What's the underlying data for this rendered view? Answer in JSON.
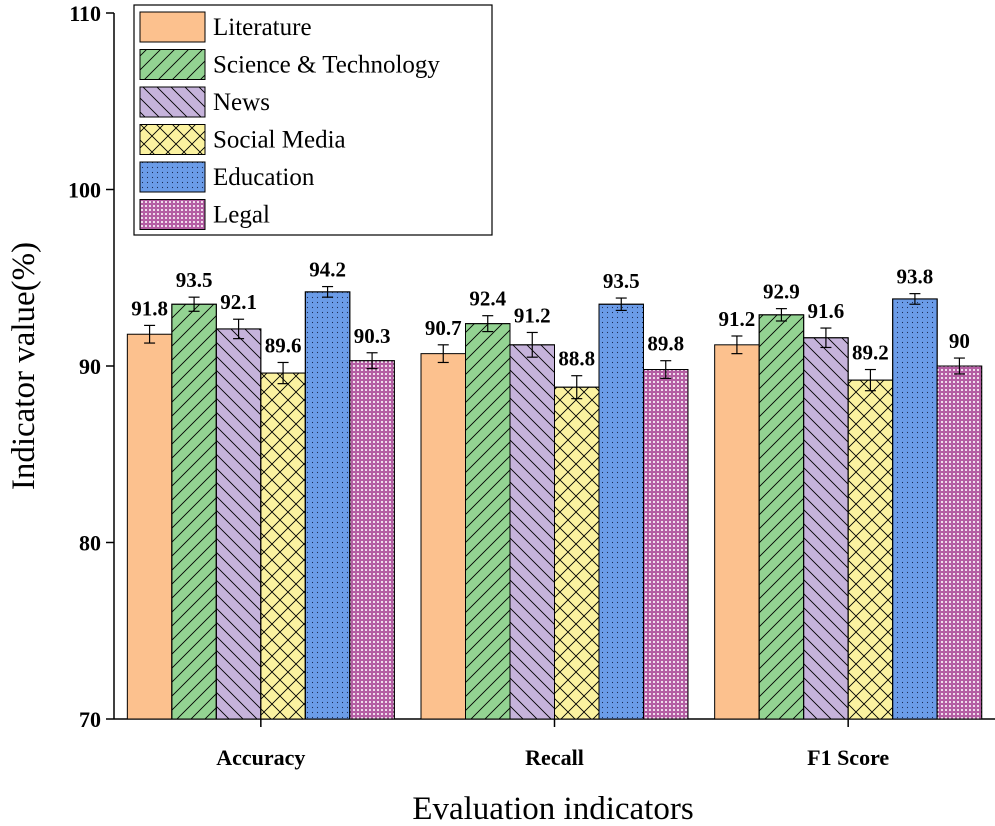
{
  "chart_data": {
    "type": "bar",
    "title": "",
    "xlabel": "Evaluation indicators",
    "ylabel": "Indicator value(%)",
    "ylim": [
      70,
      110
    ],
    "yticks": [
      70,
      80,
      90,
      100,
      110
    ],
    "categories": [
      "Accuracy",
      "Recall",
      "F1 Score"
    ],
    "legend_position": "top-left",
    "series": [
      {
        "name": "Literature",
        "color": "#FCC18E",
        "pattern": "none",
        "values": [
          91.8,
          90.7,
          91.2
        ],
        "errors": [
          0.5,
          0.5,
          0.5
        ],
        "labels": [
          "91.8",
          "90.7",
          "91.2"
        ]
      },
      {
        "name": "Science & Technology",
        "color": "#93D392",
        "pattern": "diag-up",
        "values": [
          93.5,
          92.4,
          92.9
        ],
        "errors": [
          0.4,
          0.45,
          0.35
        ],
        "labels": [
          "93.5",
          "92.4",
          "92.9"
        ]
      },
      {
        "name": "News",
        "color": "#C6B3DB",
        "pattern": "diag-down",
        "values": [
          92.1,
          91.2,
          91.6
        ],
        "errors": [
          0.55,
          0.7,
          0.55
        ],
        "labels": [
          "92.1",
          "91.2",
          "91.6"
        ]
      },
      {
        "name": "Social Media",
        "color": "#FBF2A0",
        "pattern": "crosshatch",
        "values": [
          89.6,
          88.8,
          89.2
        ],
        "errors": [
          0.6,
          0.65,
          0.6
        ],
        "labels": [
          "89.6",
          "88.8",
          "89.2"
        ]
      },
      {
        "name": "Education",
        "color": "#6B9CE8",
        "pattern": "dots",
        "values": [
          94.2,
          93.5,
          93.8
        ],
        "errors": [
          0.3,
          0.35,
          0.3
        ],
        "labels": [
          "94.2",
          "93.5",
          "93.8"
        ]
      },
      {
        "name": "Legal",
        "color": "#B45EA3",
        "pattern": "dense",
        "values": [
          90.3,
          89.8,
          90.0
        ],
        "errors": [
          0.45,
          0.5,
          0.45
        ],
        "labels": [
          "90.3",
          "89.8",
          "90"
        ]
      }
    ]
  }
}
